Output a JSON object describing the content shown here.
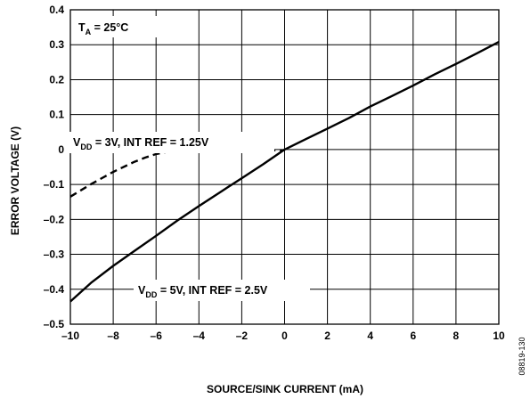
{
  "chart_data": {
    "type": "line",
    "xlabel": "SOURCE/SINK CURRENT (mA)",
    "ylabel": "ERROR VOLTAGE (V)",
    "xlim": [
      -10,
      10
    ],
    "ylim": [
      -0.5,
      0.4
    ],
    "xticks": [
      -10,
      -8,
      -6,
      -4,
      -2,
      0,
      2,
      4,
      6,
      8,
      10
    ],
    "yticks": [
      -0.5,
      -0.4,
      -0.3,
      -0.2,
      -0.1,
      0,
      0.1,
      0.2,
      0.3,
      0.4
    ],
    "xtick_labels": [
      "–10",
      "–8",
      "–6",
      "–4",
      "–2",
      "0",
      "2",
      "4",
      "6",
      "8",
      "10"
    ],
    "ytick_labels": [
      "–0.5",
      "–0.4",
      "–0.3",
      "–0.2",
      "–0.1",
      "0",
      "0.1",
      "0.2",
      "0.3",
      "0.4"
    ],
    "grid": true,
    "annotations": [
      {
        "text": "T",
        "sub": "A",
        "rest": " = 25°C"
      },
      {
        "text": "V",
        "sub": "DD",
        "rest": " = 3V, INT REF = 1.25V"
      },
      {
        "text": "V",
        "sub": "DD",
        "rest": " = 5V, INT REF = 2.5V"
      }
    ],
    "series": [
      {
        "style": "dashed",
        "x": [
          -10,
          -9,
          -8,
          -7,
          -6.5,
          -6,
          -5.5,
          -5,
          -4,
          -2,
          0
        ],
        "y": [
          -0.135,
          -0.098,
          -0.064,
          -0.035,
          -0.023,
          -0.013,
          -0.007,
          -0.004,
          -0.003,
          -0.003,
          -0.002
        ]
      },
      {
        "style": "solid",
        "x": [
          -10,
          -9,
          -8,
          -7,
          -6,
          -5,
          -4,
          -3,
          -2,
          -1,
          0,
          1,
          2,
          3,
          4,
          5,
          6,
          7,
          8,
          9,
          10
        ],
        "y": [
          -0.435,
          -0.38,
          -0.333,
          -0.29,
          -0.247,
          -0.203,
          -0.162,
          -0.122,
          -0.082,
          -0.042,
          0,
          0.03,
          0.06,
          0.09,
          0.123,
          0.153,
          0.183,
          0.215,
          0.245,
          0.276,
          0.308
        ]
      }
    ],
    "figure_id": "08819-130"
  }
}
